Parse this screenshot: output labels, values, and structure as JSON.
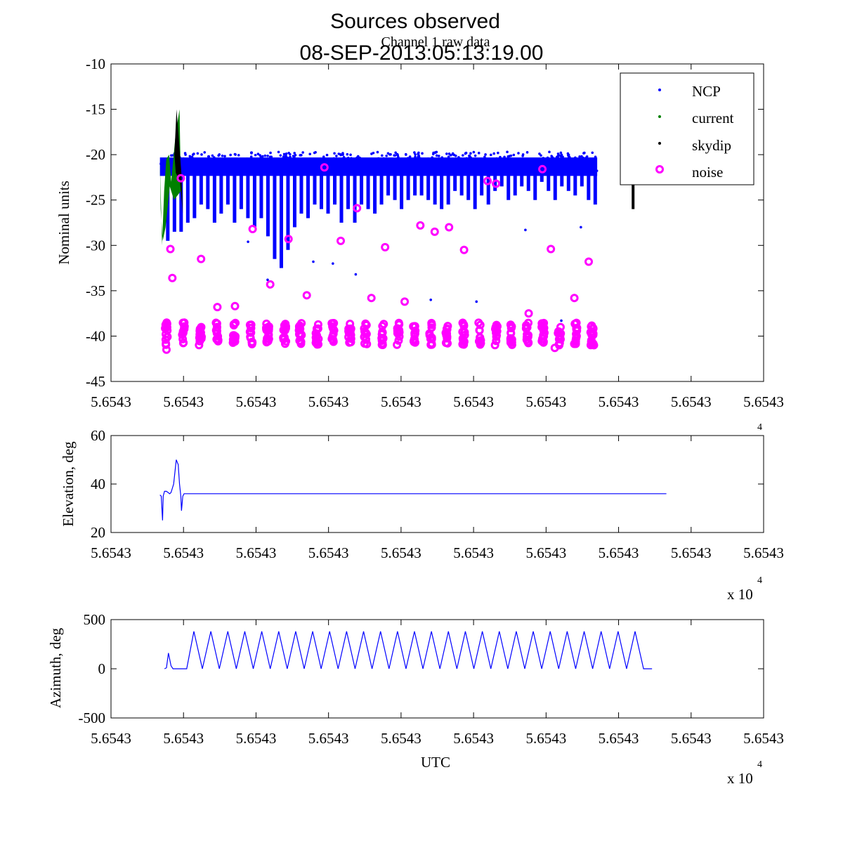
{
  "figure": {
    "title_line1": "Sources observed",
    "title_line2": "08-SEP-2013:05:13:19.00",
    "subtitle": "Channel 1 raw data"
  },
  "colors": {
    "ncp": "#0000ff",
    "current": "#008000",
    "skydip": "#000000",
    "noise": "#ff00ff",
    "line": "#0000ff"
  },
  "chart_data": [
    {
      "type": "scatter",
      "title": "Channel 1 raw data",
      "xlabel": "",
      "ylabel": "Nominal units",
      "ylim": [
        -45,
        -10
      ],
      "yticks": [
        "-10",
        "-15",
        "-20",
        "-25",
        "-30",
        "-35",
        "-40",
        "-45"
      ],
      "xtick_labels": [
        "5.6543",
        "5.6543",
        "5.6543",
        "5.6543",
        "5.6543",
        "5.6543",
        "5.6543",
        "5.6543",
        "5.6543",
        "5.6543"
      ],
      "legend": {
        "placement": "top-right",
        "entries": [
          "NCP",
          "current",
          "skydip",
          "noise"
        ]
      },
      "series": [
        {
          "name": "NCP",
          "band": [
            -22.5,
            -20.0
          ],
          "x_range": [
            0.075,
            0.745
          ],
          "dip_minima": [
            -29.5,
            -28.5,
            -28.5,
            -27.5,
            -27.0,
            -25.5,
            -26.0,
            -27.5,
            -26.5,
            -25.5,
            -27.5,
            -26.0,
            -27.0,
            -28.0,
            -27.0,
            -29.0,
            -31.5,
            -32.5,
            -30.5,
            -28.0,
            -26.5,
            -27.0,
            -25.5,
            -26.0,
            -26.5,
            -25.5,
            -27.5,
            -26.0,
            -27.5,
            -25.5,
            -26.0,
            -26.5,
            -25.5,
            -24.5,
            -25.0,
            -26.0,
            -25.0,
            -24.5,
            -24.5,
            -25.0,
            -25.5,
            -26.0,
            -25.5,
            -24.0,
            -24.5,
            -25.0,
            -26.0,
            -24.5,
            -25.5,
            -24.0,
            -23.5,
            -25.0,
            -24.5,
            -23.5,
            -24.0,
            -25.0,
            -23.0,
            -24.0,
            -25.0,
            -23.5,
            -24.0,
            -24.5,
            -23.5,
            -25.0,
            -25.5
          ]
        },
        {
          "name": "current",
          "segment": {
            "x_range": [
              0.075,
              0.105
            ],
            "y_range": [
              -30.0,
              -15.0
            ]
          }
        },
        {
          "name": "skydip",
          "segment": {
            "x_range": [
              0.095,
              0.11
            ],
            "y_range": [
              -26.5,
              -15.0
            ]
          },
          "end_segment": {
            "x": 0.8,
            "y_range": [
              -26.0,
              -21.0
            ]
          }
        },
        {
          "name": "noise",
          "outliers": [
            [
              0.085,
              -41.5
            ],
            [
              0.091,
              -30.4
            ],
            [
              0.094,
              -33.6
            ],
            [
              0.107,
              -22.6
            ],
            [
              0.138,
              -31.5
            ],
            [
              0.163,
              -36.8
            ],
            [
              0.19,
              -36.7
            ],
            [
              0.217,
              -28.2
            ],
            [
              0.244,
              -34.3
            ],
            [
              0.272,
              -29.3
            ],
            [
              0.3,
              -35.5
            ],
            [
              0.327,
              -21.4
            ],
            [
              0.352,
              -29.5
            ],
            [
              0.377,
              -25.9
            ],
            [
              0.399,
              -35.8
            ],
            [
              0.42,
              -30.2
            ],
            [
              0.45,
              -36.2
            ],
            [
              0.474,
              -27.8
            ],
            [
              0.496,
              -28.5
            ],
            [
              0.518,
              -28.0
            ],
            [
              0.541,
              -30.5
            ],
            [
              0.577,
              -22.9
            ],
            [
              0.59,
              -23.2
            ],
            [
              0.64,
              -37.5
            ],
            [
              0.661,
              -21.6
            ],
            [
              0.674,
              -30.4
            ],
            [
              0.71,
              -35.8
            ],
            [
              0.732,
              -31.8
            ],
            [
              0.68,
              -41.3
            ],
            [
              0.74,
              -41.0
            ]
          ],
          "clusters_x": [
            0.085,
            0.111,
            0.137,
            0.163,
            0.189,
            0.215,
            0.24,
            0.266,
            0.29,
            0.316,
            0.34,
            0.366,
            0.39,
            0.416,
            0.44,
            0.465,
            0.49,
            0.515,
            0.54,
            0.565,
            0.59,
            0.614,
            0.638,
            0.662,
            0.687,
            0.712,
            0.737
          ],
          "cluster_band": [
            -41.0,
            -38.5
          ]
        }
      ]
    },
    {
      "type": "line",
      "ylabel": "Elevation, deg",
      "ylim": [
        20,
        60
      ],
      "yticks": [
        "60",
        "40",
        "20"
      ],
      "xtick_labels": [
        "5.6543",
        "5.6543",
        "5.6543",
        "5.6543",
        "5.6543",
        "5.6543",
        "5.6543",
        "5.6543",
        "5.6543",
        "5.6543"
      ],
      "x_exponent": {
        "base": "x 10",
        "power": "4"
      },
      "x": [
        0.075,
        0.077,
        0.079,
        0.08,
        0.082,
        0.085,
        0.09,
        0.092,
        0.096,
        0.1,
        0.103,
        0.105,
        0.107,
        0.108,
        0.11,
        0.112,
        0.2,
        0.4,
        0.6,
        0.8,
        0.81,
        0.82,
        0.823,
        0.827,
        0.831,
        0.835,
        0.838,
        0.84,
        0.843,
        0.846,
        0.848,
        0.851
      ],
      "y": [
        35.5,
        35,
        25,
        35,
        37,
        37,
        36,
        36.5,
        40,
        50,
        48,
        40,
        35,
        29,
        35,
        36,
        36,
        36,
        36,
        36,
        36,
        36,
        36,
        36,
        36,
        36,
        36,
        36,
        36,
        36,
        36,
        36
      ]
    },
    {
      "type": "line",
      "xlabel": "UTC",
      "ylabel": "Azimuth, deg",
      "ylim": [
        -500,
        500
      ],
      "yticks": [
        "500",
        "0",
        "-500"
      ],
      "xtick_labels": [
        "5.6543",
        "5.6543",
        "5.6543",
        "5.6543",
        "5.6543",
        "5.6543",
        "5.6543",
        "5.6543",
        "5.6543",
        "5.6543"
      ],
      "x_exponent": {
        "base": "x 10",
        "power": "4"
      },
      "x": [
        0.082,
        0.085,
        0.088,
        0.092,
        0.095,
        0.1,
        0.116,
        0.127,
        0.14,
        0.153,
        0.166,
        0.179,
        0.192,
        0.205,
        0.218,
        0.231,
        0.244,
        0.257,
        0.27,
        0.283,
        0.296,
        0.309,
        0.322,
        0.335,
        0.348,
        0.361,
        0.374,
        0.387,
        0.4,
        0.413,
        0.426,
        0.439,
        0.452,
        0.465,
        0.478,
        0.491,
        0.504,
        0.517,
        0.53,
        0.543,
        0.556,
        0.569,
        0.582,
        0.595,
        0.608,
        0.621,
        0.634,
        0.647,
        0.66,
        0.673,
        0.686,
        0.699,
        0.712,
        0.725,
        0.738,
        0.751,
        0.764,
        0.777,
        0.79,
        0.803,
        0.816,
        0.829
      ],
      "y": [
        0,
        10,
        160,
        30,
        0,
        0,
        0,
        380,
        0,
        380,
        0,
        380,
        0,
        380,
        0,
        380,
        0,
        380,
        0,
        380,
        0,
        380,
        0,
        380,
        0,
        380,
        0,
        380,
        0,
        380,
        0,
        380,
        0,
        380,
        0,
        380,
        0,
        380,
        0,
        380,
        0,
        380,
        0,
        380,
        0,
        380,
        0,
        380,
        0,
        380,
        0,
        380,
        0,
        380,
        0,
        380,
        0,
        380,
        0,
        380,
        0,
        0
      ]
    }
  ]
}
